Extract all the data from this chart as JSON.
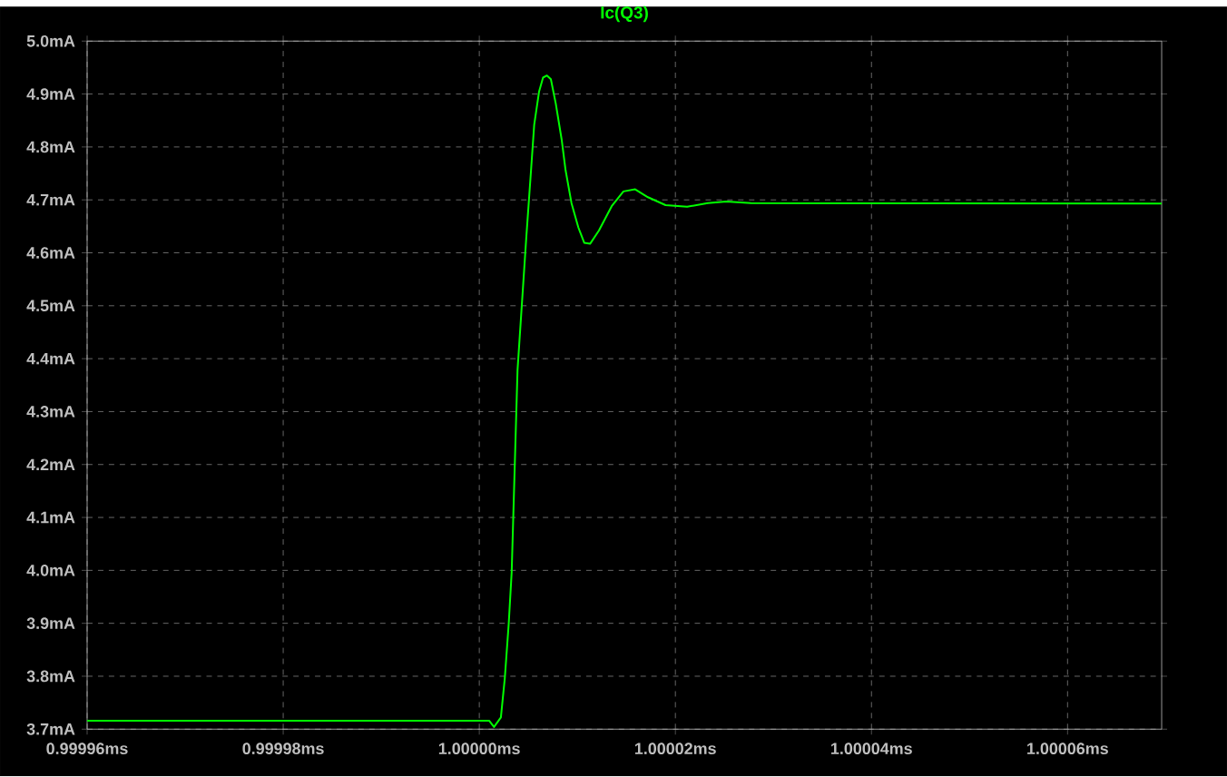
{
  "chart_data": {
    "type": "line",
    "title": "Ic(Q3)",
    "x": [
      0.99996,
      1.000001,
      1.0000015,
      1.0000022,
      1.0000026,
      1.000003,
      1.0000033,
      1.0000039,
      1.0000048,
      1.0000053,
      1.0000056,
      1.0000061,
      1.0000065,
      1.0000069,
      1.0000073,
      1.0000078,
      1.0000084,
      1.0000088,
      1.0000094,
      1.0000101,
      1.0000107,
      1.0000113,
      1.0000122,
      1.0000135,
      1.0000147,
      1.0000159,
      1.0000172,
      1.000019,
      1.0000212,
      1.0000233,
      1.0000252,
      1.0000277,
      1.0000696
    ],
    "series": [
      {
        "color": "#00ff00",
        "values": [
          3.716,
          3.716,
          3.704,
          3.722,
          3.796,
          3.899,
          3.996,
          4.379,
          4.631,
          4.762,
          4.842,
          4.905,
          4.931,
          4.935,
          4.928,
          4.882,
          4.814,
          4.756,
          4.694,
          4.648,
          4.619,
          4.617,
          4.642,
          4.688,
          4.716,
          4.72,
          4.705,
          4.69,
          4.687,
          4.694,
          4.697,
          4.694,
          4.693
        ]
      }
    ],
    "xlim": [
      0.99996,
      1.0000696
    ],
    "ylim": [
      3.7,
      5.0
    ],
    "xticks": [
      {
        "value": 0.99996,
        "label": "0.99996ms"
      },
      {
        "value": 0.99998,
        "label": "0.99998ms"
      },
      {
        "value": 1.0,
        "label": "1.00000ms"
      },
      {
        "value": 1.00002,
        "label": "1.00002ms"
      },
      {
        "value": 1.00004,
        "label": "1.00004ms"
      },
      {
        "value": 1.00006,
        "label": "1.00006ms"
      }
    ],
    "yticks": [
      {
        "value": 3.7,
        "label": "3.7mA"
      },
      {
        "value": 3.8,
        "label": "3.8mA"
      },
      {
        "value": 3.9,
        "label": "3.9mA"
      },
      {
        "value": 4.0,
        "label": "4.0mA"
      },
      {
        "value": 4.1,
        "label": "4.1mA"
      },
      {
        "value": 4.2,
        "label": "4.2mA"
      },
      {
        "value": 4.3,
        "label": "4.3mA"
      },
      {
        "value": 4.4,
        "label": "4.4mA"
      },
      {
        "value": 4.5,
        "label": "4.5mA"
      },
      {
        "value": 4.6,
        "label": "4.6mA"
      },
      {
        "value": 4.7,
        "label": "4.7mA"
      },
      {
        "value": 4.8,
        "label": "4.8mA"
      },
      {
        "value": 4.9,
        "label": "4.9mA"
      },
      {
        "value": 5.0,
        "label": "5.0mA"
      }
    ],
    "grid": true,
    "line_style": "solid"
  }
}
